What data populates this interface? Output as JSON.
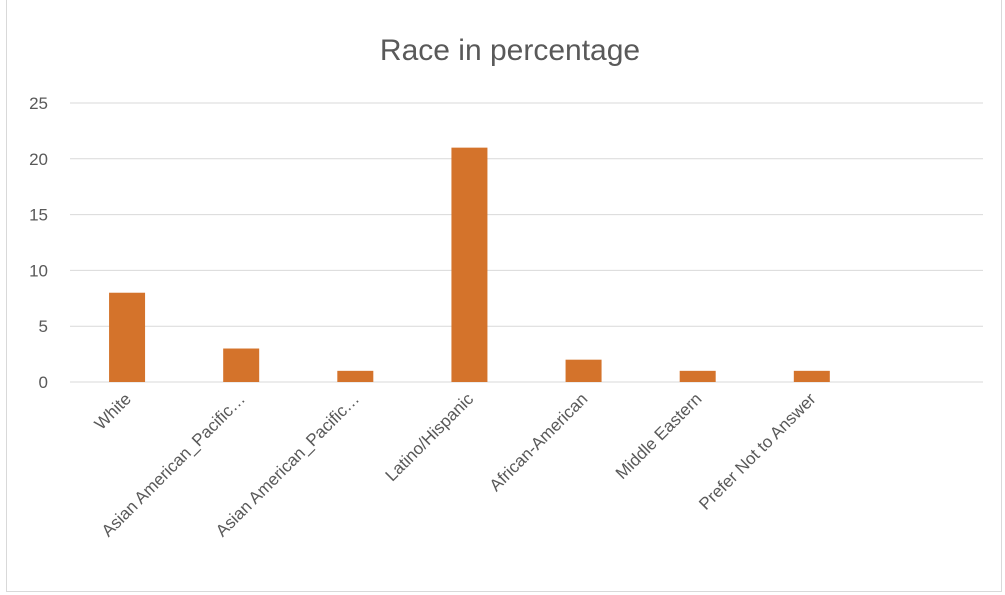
{
  "chart_data": {
    "type": "bar",
    "title": "Race in percentage",
    "xlabel": "",
    "ylabel": "",
    "ylim": [
      0,
      25
    ],
    "yticks": [
      "0",
      "5",
      "10",
      "15",
      "20",
      "25"
    ],
    "grid": true,
    "categories": [
      "White",
      "Asian American_Pacific…",
      "Asian American_Pacific…",
      "Latino/Hispanic",
      "African-American",
      "Middle Eastern",
      "Prefer Not to Answer",
      ""
    ],
    "values": [
      8,
      3,
      1,
      21,
      2,
      1,
      1,
      null
    ],
    "colors": {
      "bar": "#D4732B",
      "grid": "#D9D9D9",
      "text": "#595959"
    }
  }
}
